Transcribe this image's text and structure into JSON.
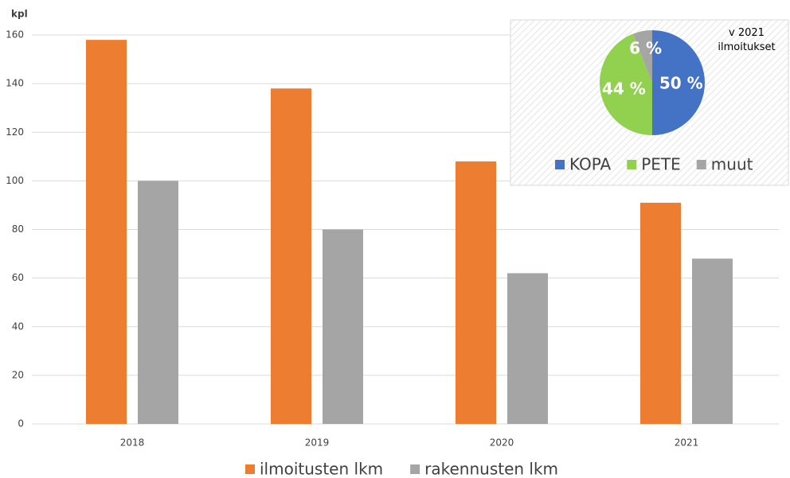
{
  "chart_data": [
    {
      "type": "bar",
      "y_label": "kpl",
      "categories": [
        "2018",
        "2019",
        "2020",
        "2021"
      ],
      "series": [
        {
          "name": "ilmoitusten lkm",
          "color": "#ed7d31",
          "values": [
            158,
            138,
            108,
            91
          ]
        },
        {
          "name": "rakennusten lkm",
          "color": "#a5a5a5",
          "values": [
            100,
            80,
            62,
            68
          ]
        }
      ],
      "ylim": [
        0,
        160
      ],
      "yticks": [
        0,
        20,
        40,
        60,
        80,
        100,
        120,
        140,
        160
      ],
      "grid": true,
      "legend": "bottom"
    },
    {
      "type": "pie",
      "title": "v 2021 ilmoitukset",
      "categories": [
        "KOPA",
        "PETE",
        "muut"
      ],
      "values": [
        50,
        44,
        6
      ],
      "value_labels": [
        "50 %",
        "44 %",
        "6 %"
      ],
      "colors": [
        "#4472c4",
        "#92d050",
        "#a5a5a5"
      ],
      "legend": "bottom"
    }
  ]
}
